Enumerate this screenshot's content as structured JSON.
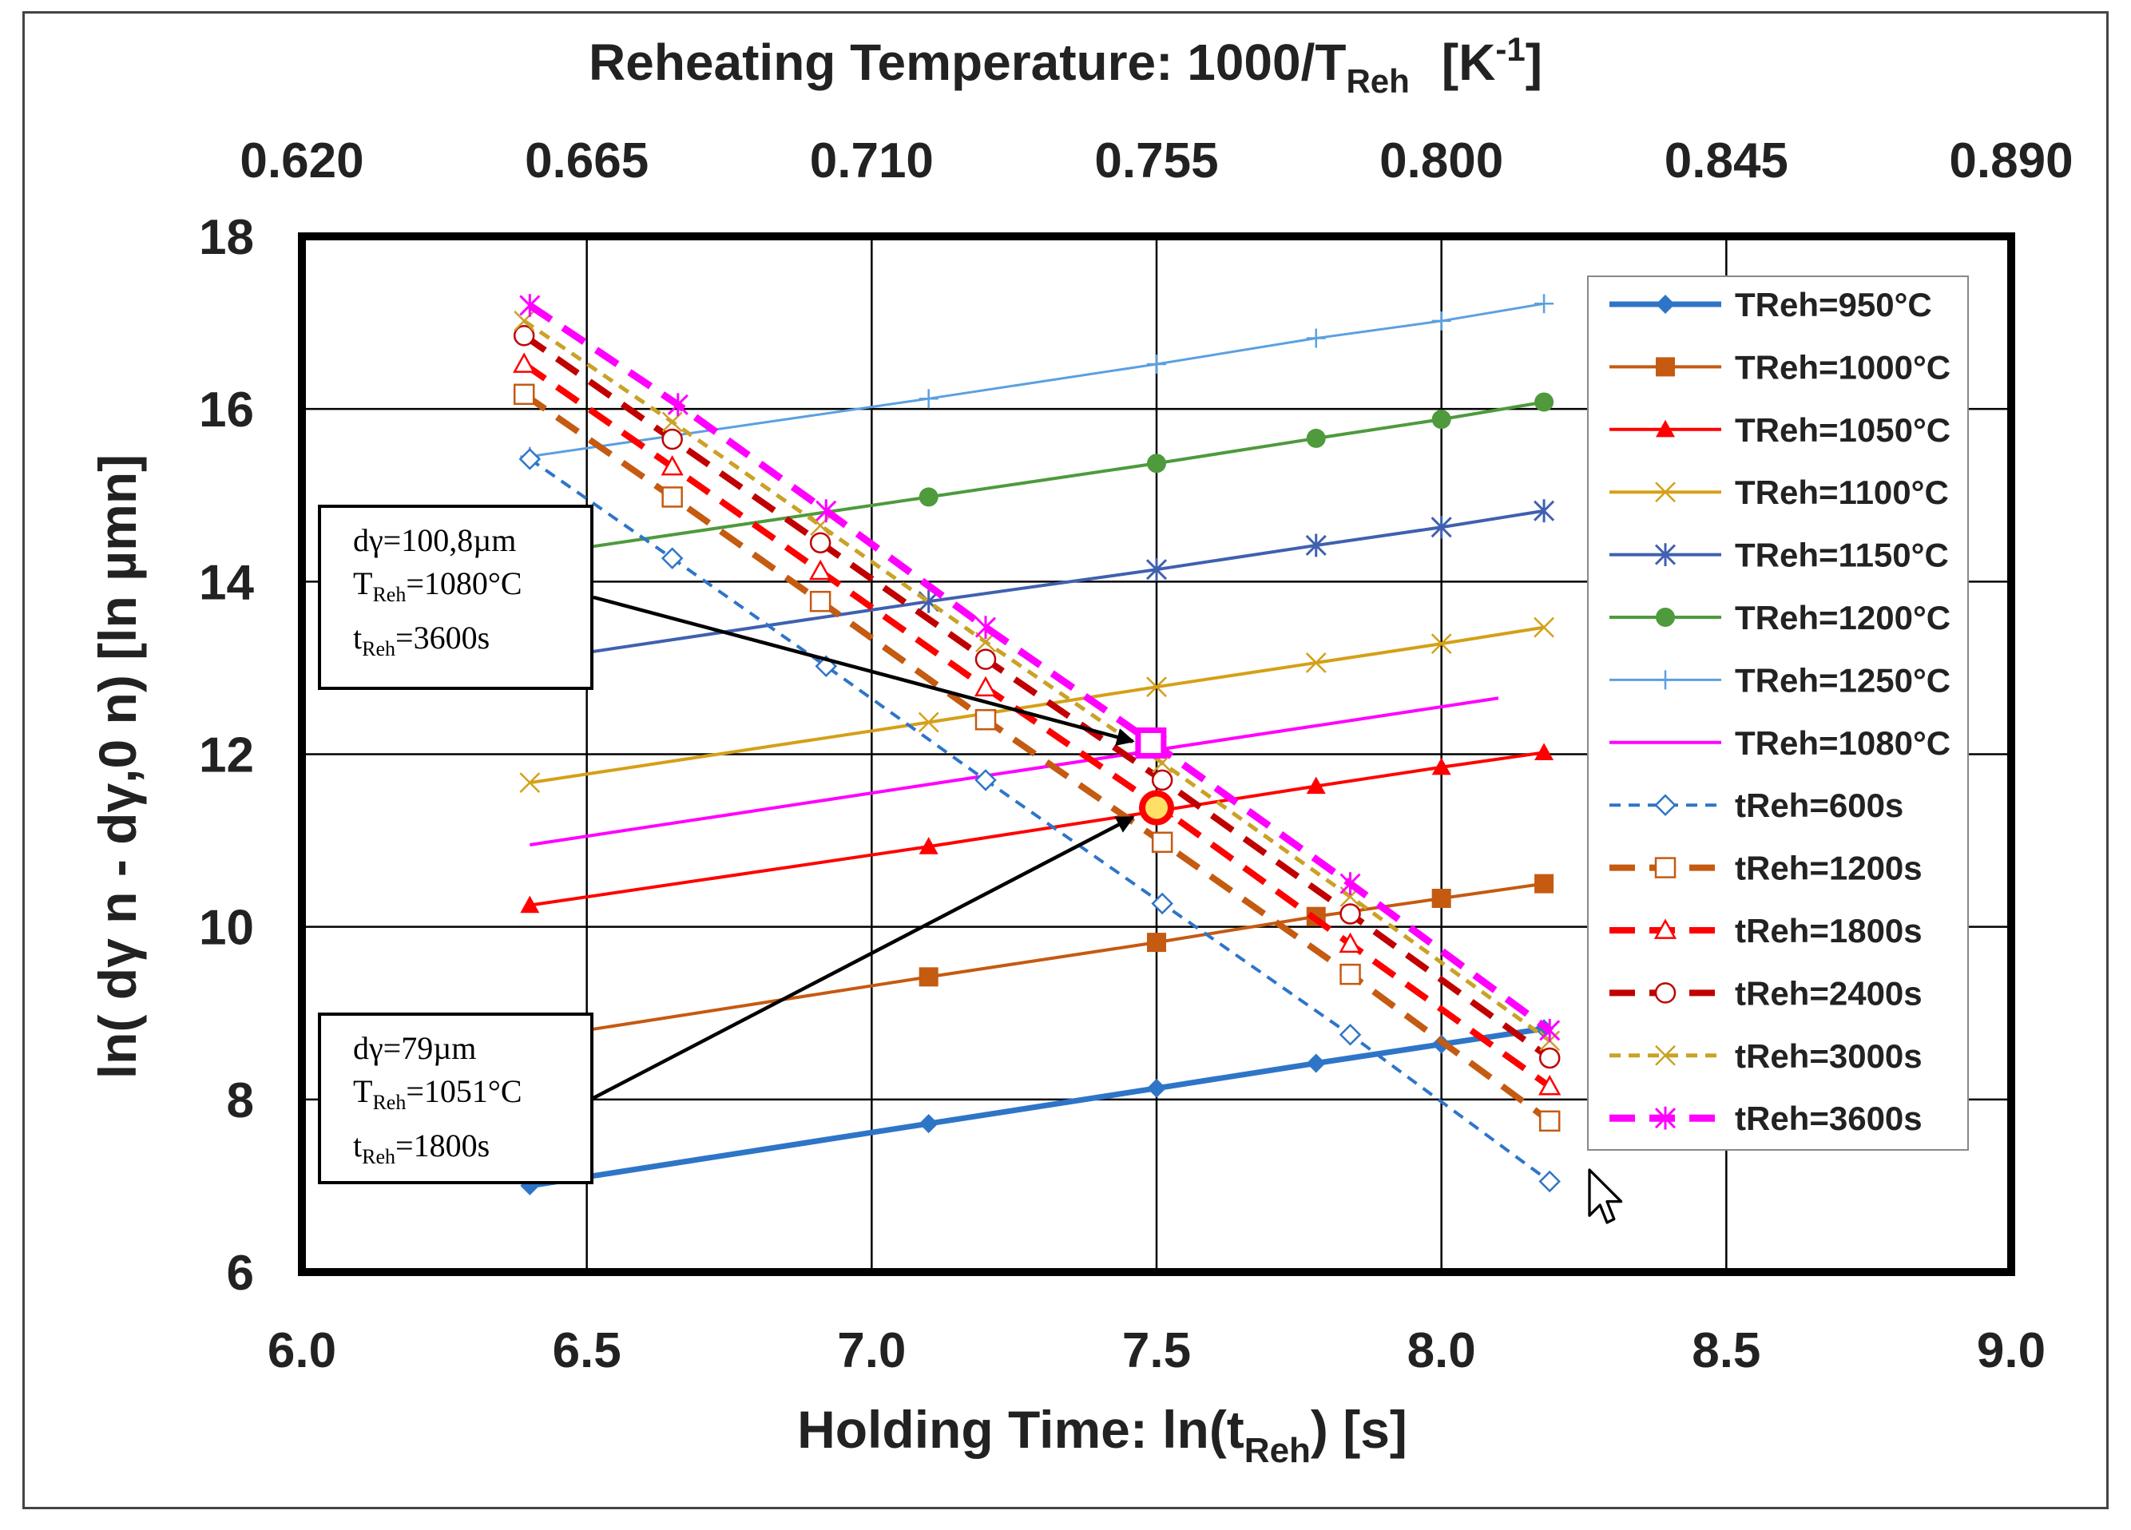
{
  "chart_data": {
    "type": "scatter",
    "title_top_axis": "Reheating Temperature: 1000/T",
    "title_top_sub": "Reh",
    "title_top_unit": "[K",
    "title_top_unit_sup": "-1",
    "title_top_unit_end": "]",
    "xlabel": "Holding Time: ln(t",
    "xlabel_sub": "Reh",
    "xlabel_end": ") [s]",
    "ylabel": "ln( dγ n - dγ,0 n) [ln µmn]",
    "xlim": [
      6.0,
      9.0
    ],
    "ylim": [
      6,
      18
    ],
    "x_ticks": [
      "6.0",
      "6.5",
      "7.0",
      "7.5",
      "8.0",
      "8.5",
      "9.0"
    ],
    "y_ticks": [
      "6",
      "8",
      "10",
      "12",
      "14",
      "16",
      "18"
    ],
    "top_ticks": [
      "0.620",
      "0.665",
      "0.710",
      "0.755",
      "0.800",
      "0.845",
      "0.890"
    ],
    "grid": true,
    "legend_position": "right",
    "series": [
      {
        "name": "TReh=950°C",
        "color": "#2e75c8",
        "style": "solid",
        "width": 7,
        "marker": "diamond",
        "x": [
          6.4,
          7.1,
          7.5,
          7.78,
          8.0,
          8.18
        ],
        "y": [
          7.0,
          7.72,
          8.13,
          8.42,
          8.64,
          8.82
        ]
      },
      {
        "name": "TReh=1000°C",
        "color": "#c55a11",
        "style": "solid",
        "width": 4,
        "marker": "square",
        "x": [
          6.4,
          7.1,
          7.5,
          7.78,
          8.0,
          8.18
        ],
        "y": [
          8.7,
          9.42,
          9.82,
          10.12,
          10.33,
          10.5
        ]
      },
      {
        "name": "TReh=1050°C",
        "color": "#ff0000",
        "style": "solid",
        "width": 4,
        "marker": "triangle",
        "x": [
          6.4,
          7.1,
          7.5,
          7.78,
          8.0,
          8.18
        ],
        "y": [
          10.25,
          10.93,
          11.34,
          11.63,
          11.85,
          12.02
        ]
      },
      {
        "name": "TReh=1100°C",
        "color": "#d4a017",
        "style": "solid",
        "width": 4,
        "marker": "x",
        "x": [
          6.4,
          7.1,
          7.5,
          7.78,
          8.0,
          8.18
        ],
        "y": [
          11.67,
          12.37,
          12.78,
          13.06,
          13.28,
          13.47
        ]
      },
      {
        "name": "TReh=1150°C",
        "color": "#4060b0",
        "style": "solid",
        "width": 4,
        "marker": "star",
        "x": [
          6.4,
          7.1,
          7.5,
          7.78,
          8.0,
          8.18
        ],
        "y": [
          13.08,
          13.77,
          14.14,
          14.42,
          14.63,
          14.82
        ]
      },
      {
        "name": "TReh=1200°C",
        "color": "#4e9a3c",
        "style": "solid",
        "width": 4,
        "marker": "circle",
        "x": [
          6.4,
          7.1,
          7.5,
          7.78,
          8.0,
          8.18
        ],
        "y": [
          14.3,
          14.98,
          15.37,
          15.66,
          15.88,
          16.08
        ]
      },
      {
        "name": "TReh=1250°C",
        "color": "#5aa0e0",
        "style": "solid",
        "width": 3,
        "marker": "plus",
        "x": [
          6.4,
          7.1,
          7.5,
          7.78,
          8.0,
          8.18
        ],
        "y": [
          15.45,
          16.12,
          16.52,
          16.82,
          17.02,
          17.22
        ]
      },
      {
        "name": "TReh=1080°C",
        "color": "#ff00ff",
        "style": "solid",
        "width": 4,
        "marker": "none",
        "x": [
          6.4,
          8.1
        ],
        "y": [
          10.95,
          12.65
        ]
      },
      {
        "name": "tReh=600s",
        "color": "#2e75c8",
        "style": "dash",
        "width": 4,
        "marker": "open-diamond",
        "x": [
          6.4,
          6.65,
          6.92,
          7.2,
          7.51,
          7.84,
          8.19
        ],
        "y": [
          15.42,
          14.27,
          13.02,
          11.7,
          10.27,
          8.75,
          7.05
        ]
      },
      {
        "name": "tReh=1200s",
        "color": "#c55a11",
        "style": "bigdash",
        "width": 8,
        "marker": "open-square",
        "x": [
          6.39,
          6.65,
          6.91,
          7.2,
          7.51,
          7.84,
          8.19
        ],
        "y": [
          16.17,
          14.98,
          13.77,
          12.4,
          10.98,
          9.45,
          7.75
        ]
      },
      {
        "name": "tReh=1800s",
        "color": "#ff0000",
        "style": "bigdash",
        "width": 8,
        "marker": "open-triangle",
        "x": [
          6.39,
          6.65,
          6.91,
          7.2,
          7.51,
          7.84,
          8.19
        ],
        "y": [
          16.52,
          15.33,
          14.12,
          12.77,
          11.37,
          9.8,
          8.15
        ]
      },
      {
        "name": "tReh=2400s",
        "color": "#c00000",
        "style": "bigdash",
        "width": 8,
        "marker": "open-circle",
        "x": [
          6.39,
          6.65,
          6.91,
          7.2,
          7.51,
          7.84,
          8.19
        ],
        "y": [
          16.85,
          15.65,
          14.45,
          13.1,
          11.7,
          10.15,
          8.48
        ]
      },
      {
        "name": "tReh=3000s",
        "color": "#c9a227",
        "style": "dash",
        "width": 5,
        "marker": "x",
        "x": [
          6.39,
          6.65,
          6.91,
          7.2,
          7.51,
          7.84,
          8.19
        ],
        "y": [
          17.02,
          15.85,
          14.65,
          13.3,
          11.9,
          10.35,
          8.68
        ]
      },
      {
        "name": "tReh=3600s",
        "color": "#ff00ff",
        "style": "bigdash",
        "width": 9,
        "marker": "star",
        "x": [
          6.4,
          6.66,
          6.92,
          7.2,
          7.5,
          7.84,
          8.19
        ],
        "y": [
          17.2,
          16.05,
          14.82,
          13.47,
          12.1,
          10.5,
          8.8
        ]
      }
    ],
    "highlights": [
      {
        "name": "point-100-8um",
        "x": 7.49,
        "y": 12.13,
        "shape": "square",
        "color": "#ff00ff"
      },
      {
        "name": "point-79um",
        "x": 7.5,
        "y": 11.38,
        "shape": "circle",
        "color": "#ff0000"
      }
    ],
    "annotations": [
      {
        "id": "ann1",
        "line1": "dγ=100,8µm",
        "line2_a": "T",
        "line2_sub": "Reh",
        "line2_b": "=1080°C",
        "line3_a": "t",
        "line3_sub": "Reh",
        "line3_b": "=3600s",
        "arrow_to": [
          7.47,
          12.15
        ]
      },
      {
        "id": "ann2",
        "line1": "dγ=79µm",
        "line2_a": "T",
        "line2_sub": "Reh",
        "line2_b": "=1051°C",
        "line3_a": "t",
        "line3_sub": "Reh",
        "line3_b": "=1800s",
        "arrow_to": [
          7.47,
          11.4
        ]
      }
    ]
  }
}
